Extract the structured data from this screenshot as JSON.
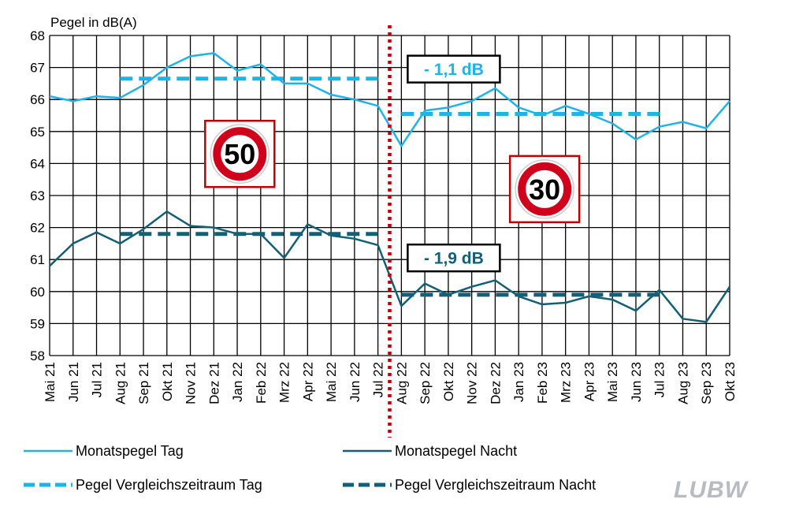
{
  "chart_data": {
    "type": "line",
    "ylabel": "Pegel in dB(A)",
    "ylim": [
      58,
      68
    ],
    "yticks": [
      58,
      59,
      60,
      61,
      62,
      63,
      64,
      65,
      66,
      67,
      68
    ],
    "categories": [
      "Mai 21",
      "Jun 21",
      "Jul 21",
      "Aug 21",
      "Sep 21",
      "Okt 21",
      "Nov 21",
      "Dez 21",
      "Jan 22",
      "Feb 22",
      "Mrz 22",
      "Apr 22",
      "Mai 22",
      "Jun 22",
      "Jul 22",
      "Aug 22",
      "Sep 22",
      "Okt 22",
      "Nov 22",
      "Dez 22",
      "Jan 23",
      "Feb 23",
      "Mrz 23",
      "Apr 23",
      "Mai 23",
      "Jun 23",
      "Jul 23",
      "Aug 23",
      "Sep 23",
      "Okt 23"
    ],
    "grid": true,
    "legend_position": "bottom",
    "series": [
      {
        "name": "Monatspegel Tag",
        "style": "solid",
        "color": "#1eb4e8",
        "values": [
          66.1,
          65.95,
          66.1,
          66.05,
          66.45,
          67.0,
          67.35,
          67.45,
          66.9,
          67.1,
          66.5,
          66.5,
          66.15,
          66.0,
          65.8,
          64.55,
          65.65,
          65.75,
          65.95,
          66.35,
          65.75,
          65.5,
          65.8,
          65.55,
          65.25,
          64.75,
          65.15,
          65.3,
          65.1,
          65.95
        ]
      },
      {
        "name": "Monatspegel Nacht",
        "style": "solid",
        "color": "#135f76",
        "values": [
          60.8,
          61.5,
          61.85,
          61.5,
          61.95,
          62.5,
          62.05,
          62.0,
          61.8,
          61.8,
          61.05,
          62.1,
          61.75,
          61.65,
          61.45,
          59.55,
          60.25,
          59.9,
          60.15,
          60.35,
          59.85,
          59.6,
          59.65,
          59.85,
          59.75,
          59.4,
          60.05,
          59.15,
          59.05,
          60.15
        ]
      },
      {
        "name": "Pegel Vergleichszeitraum Tag",
        "style": "dashed",
        "color": "#1eb4e8",
        "segments": [
          {
            "from": "Aug 21",
            "to": "Jul 22",
            "value": 66.65
          },
          {
            "from": "Aug 22",
            "to": "Jul 23",
            "value": 65.55
          }
        ]
      },
      {
        "name": "Pegel Vergleichszeitraum Nacht",
        "style": "dashed",
        "color": "#135f76",
        "segments": [
          {
            "from": "Aug 21",
            "to": "Jul 22",
            "value": 61.8
          },
          {
            "from": "Aug 22",
            "to": "Jul 23",
            "value": 59.9
          }
        ]
      }
    ],
    "change_marker": {
      "between": [
        "Jul 22",
        "Aug 22"
      ],
      "color": "#c00000",
      "style": "dotted"
    },
    "annotations": [
      {
        "text": "- 1,1 dB",
        "color": "#1eb4e8",
        "anchor_category": "Aug 22",
        "anchor_value": 66.95
      },
      {
        "text": "- 1,9 dB",
        "color": "#135f76",
        "anchor_category": "Aug 22",
        "anchor_value": 61.05
      }
    ],
    "signs": [
      {
        "text": "50",
        "anchor_category": "Dez 21",
        "anchor_value": 64.3
      },
      {
        "text": "30",
        "anchor_category": "Jan 23",
        "anchor_value": 63.2
      }
    ]
  },
  "logo": {
    "text": "LUBW"
  }
}
